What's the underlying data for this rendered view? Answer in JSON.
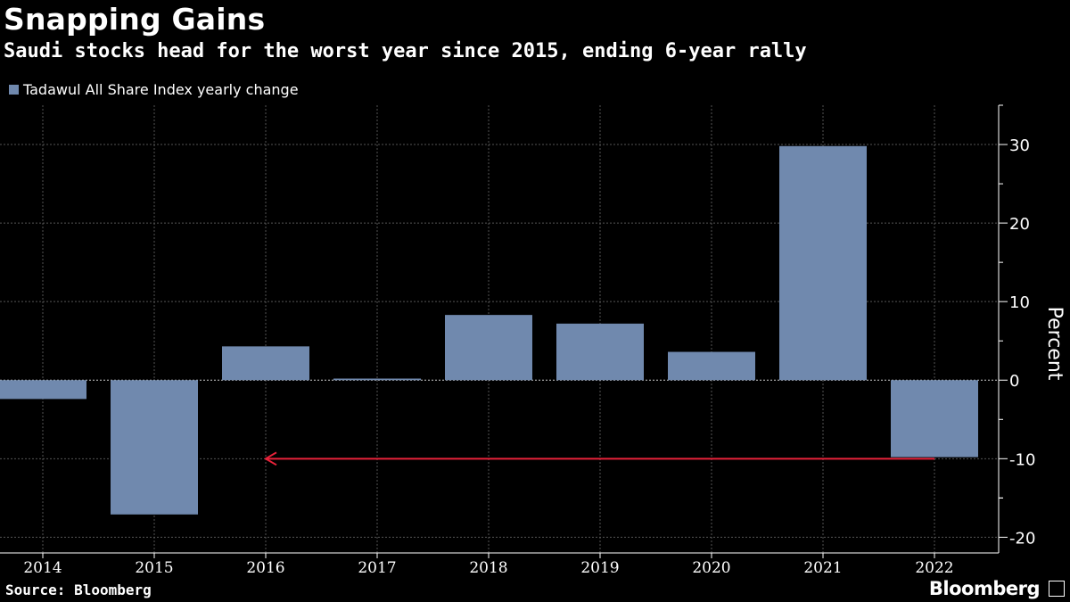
{
  "header": {
    "title": "Snapping Gains",
    "subtitle": "Saudi stocks head for the worst year since 2015, ending 6-year rally"
  },
  "footer": {
    "source": "Source: Bloomberg",
    "brand": "Bloomberg"
  },
  "colors": {
    "bar": "#7089AE",
    "annotation": "#E8223A",
    "grid": "#555555",
    "background": "#000000"
  },
  "chart_data": {
    "type": "bar",
    "title": "Snapping Gains",
    "subtitle": "Saudi stocks head for the worst year since 2015, ending 6-year rally",
    "legend": [
      "Tadawul All Share Index yearly change"
    ],
    "categories": [
      "2014",
      "2015",
      "2016",
      "2017",
      "2018",
      "2019",
      "2020",
      "2021",
      "2022"
    ],
    "series": [
      {
        "name": "Tadawul All Share Index yearly change",
        "values": [
          -2.4,
          -17.1,
          4.3,
          0.2,
          8.3,
          7.2,
          3.6,
          29.8,
          -9.8
        ]
      }
    ],
    "ylabel": "Percent",
    "ylim": [
      -22,
      35
    ],
    "yticks": [
      30,
      20,
      10,
      0,
      -10,
      -20
    ],
    "ytick_labels": [
      "30",
      "20",
      "10",
      "0",
      "-10",
      "-20"
    ],
    "grid": true,
    "annotations": [
      {
        "type": "arrow",
        "from_category": "2022",
        "to_category": "2016",
        "y": -10,
        "description": "level line pointing back to 2015"
      }
    ]
  }
}
